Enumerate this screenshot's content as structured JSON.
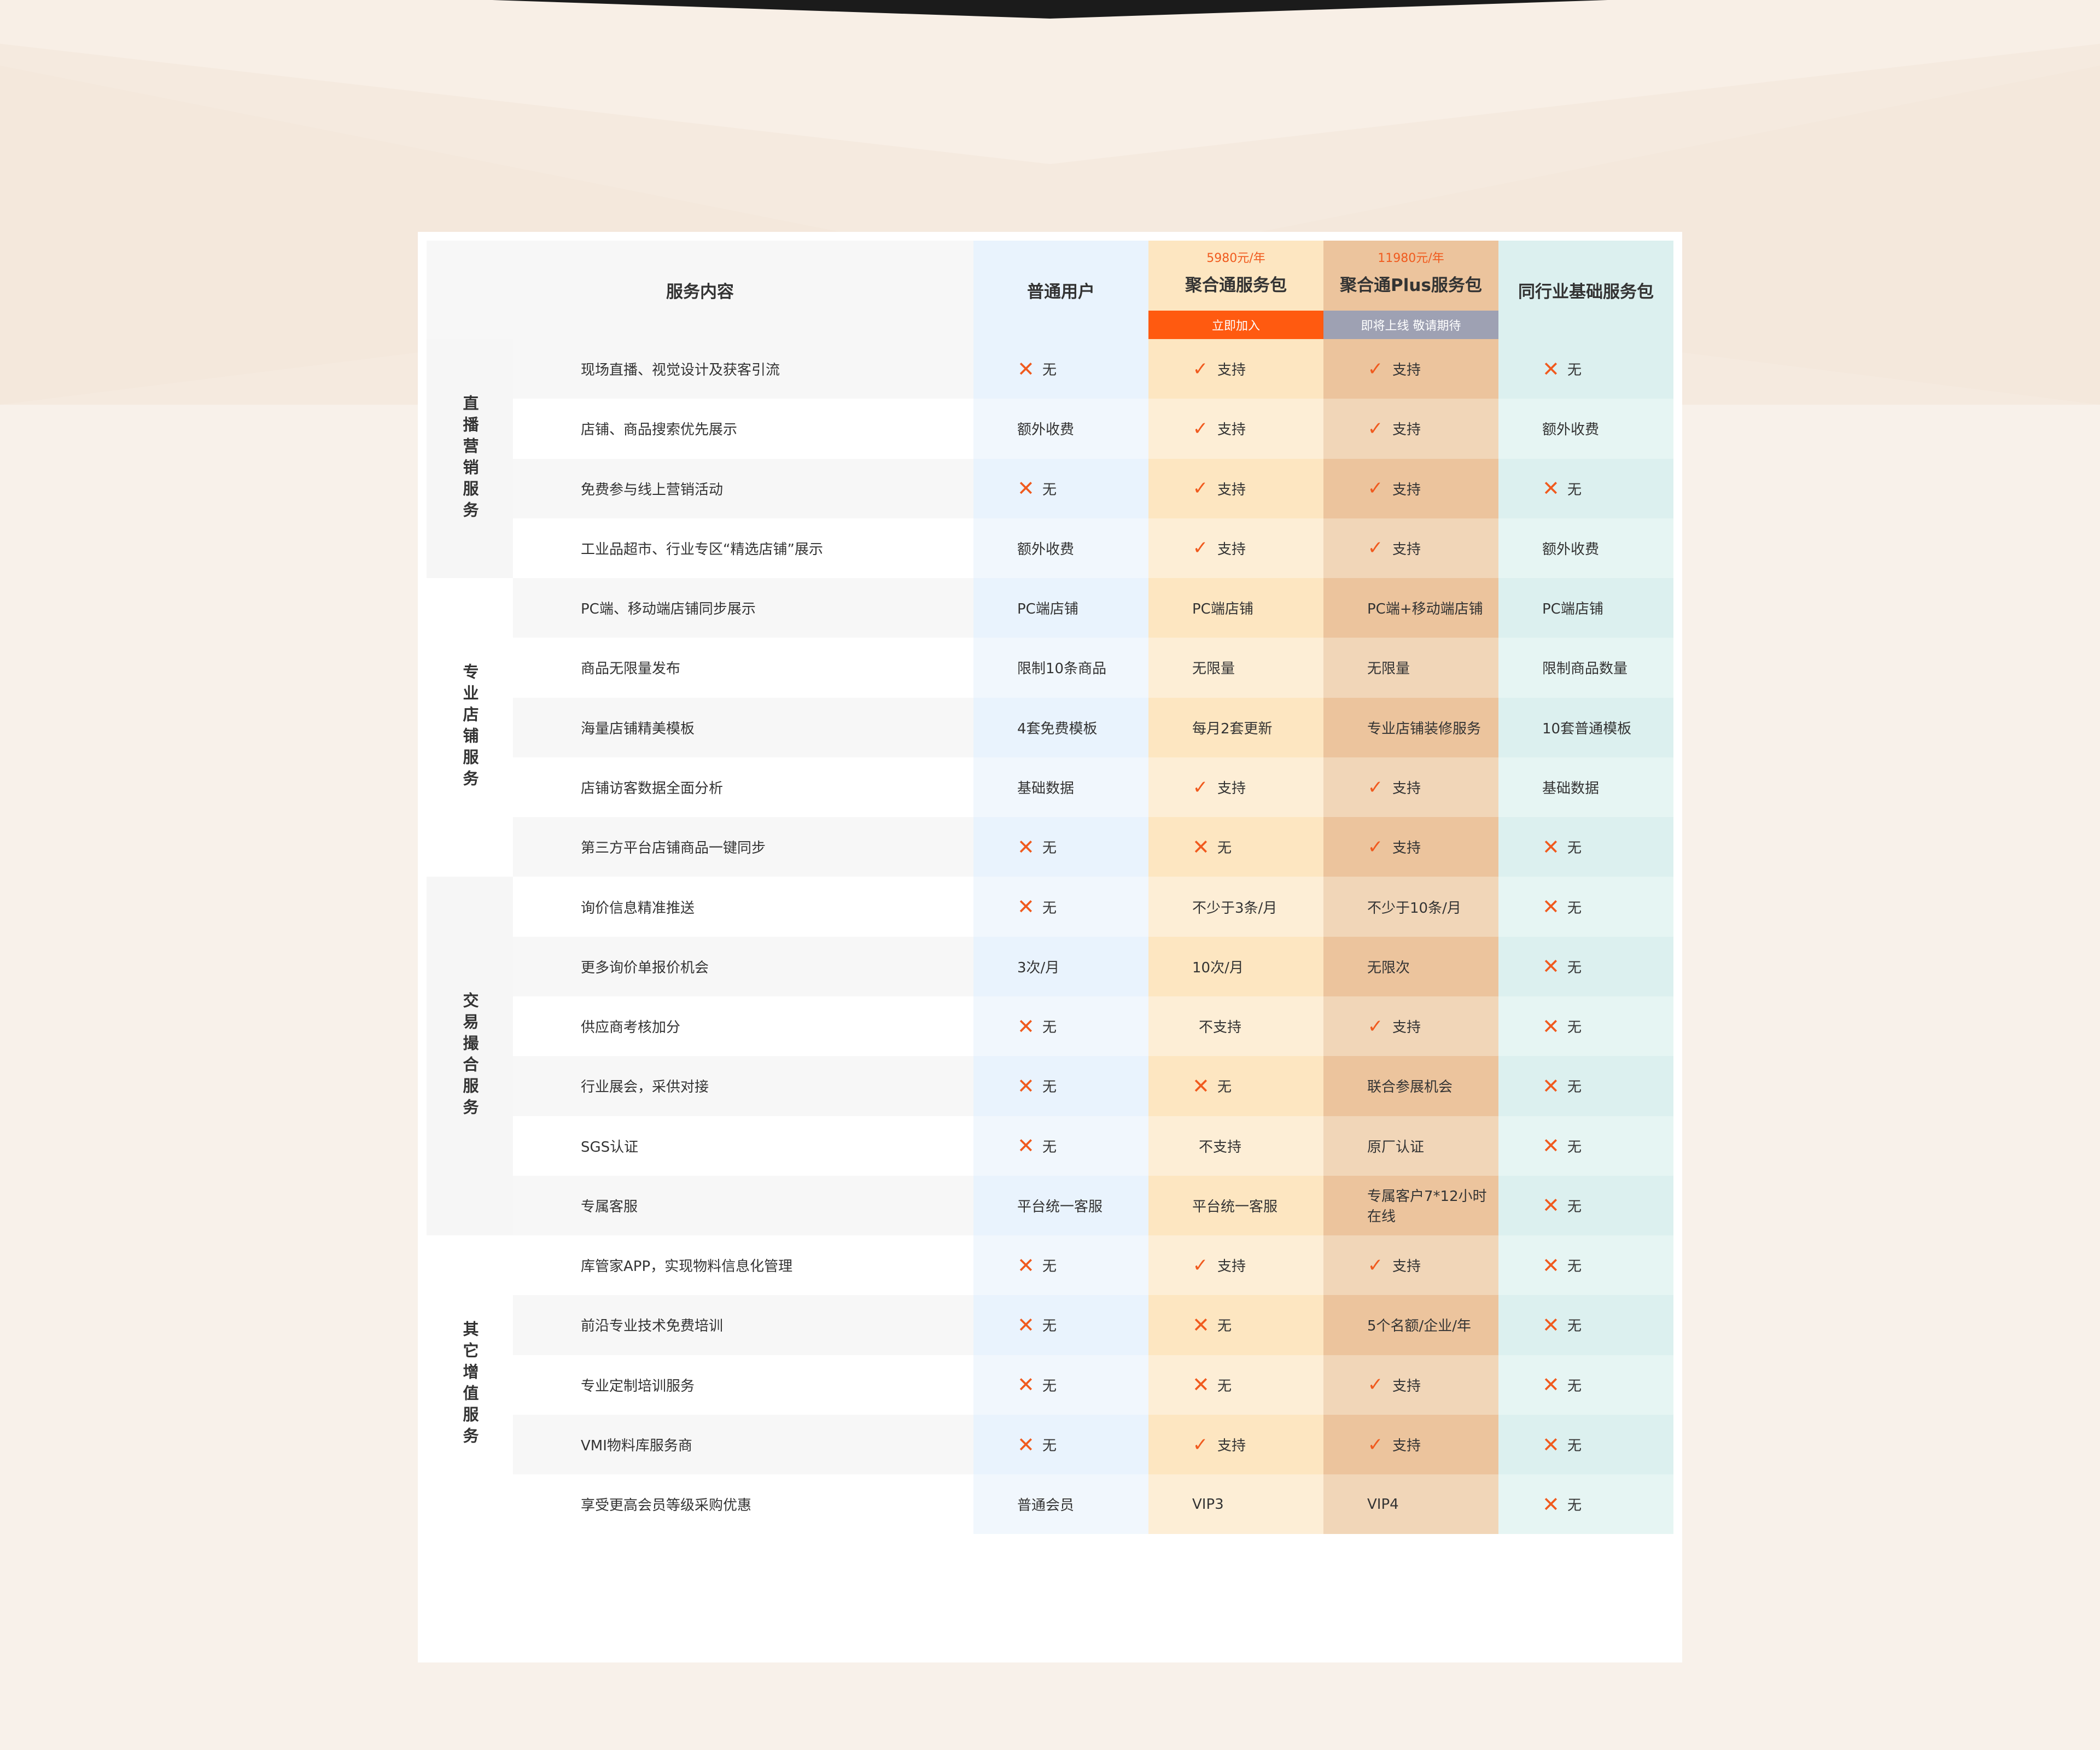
{
  "header": {
    "service_content": "服务内容",
    "columns": [
      {
        "title": "普通用户",
        "price": "",
        "bar": ""
      },
      {
        "title": "聚合通服务包",
        "price": "5980元/年",
        "bar": "立即加入"
      },
      {
        "title": "聚合通Plus服务包",
        "price": "11980元/年",
        "bar": "即将上线 敬请期待"
      },
      {
        "title": "同行业基础服务包",
        "price": "",
        "bar": ""
      }
    ]
  },
  "colors": {
    "normal": [
      "#e9f3fd",
      "#f1f7fd"
    ],
    "pkg": [
      "#fde6c1",
      "#fdeed6"
    ],
    "plus": [
      "#ecc49d",
      "#f1d6b8"
    ],
    "peer": [
      "#dcf0ef",
      "#e6f5f3"
    ],
    "feature": [
      "#f7f7f7",
      "#ffffff"
    ],
    "accent": "#f05a1e",
    "join": "#ff5a10",
    "soon": "#9ea1b3"
  },
  "icons": {
    "cross": "cross-icon",
    "check": "check-icon"
  },
  "categories": [
    {
      "name": "直播营销服务",
      "rows": [
        {
          "feature": "现场直播、视觉设计及获客引流",
          "cells": [
            {
              "m": "x",
              "t": "无"
            },
            {
              "m": "v",
              "t": "支持"
            },
            {
              "m": "v",
              "t": "支持"
            },
            {
              "m": "x",
              "t": "无"
            }
          ]
        },
        {
          "feature": "店铺、商品搜索优先展示",
          "cells": [
            {
              "t": "额外收费"
            },
            {
              "m": "v",
              "t": "支持"
            },
            {
              "m": "v",
              "t": "支持"
            },
            {
              "t": "额外收费"
            }
          ]
        },
        {
          "feature": "免费参与线上营销活动",
          "cells": [
            {
              "m": "x",
              "t": "无"
            },
            {
              "m": "v",
              "t": "支持"
            },
            {
              "m": "v",
              "t": "支持"
            },
            {
              "m": "x",
              "t": "无"
            }
          ]
        },
        {
          "feature": "工业品超市、行业专区“精选店铺”展示",
          "cells": [
            {
              "t": "额外收费"
            },
            {
              "m": "v",
              "t": "支持"
            },
            {
              "m": "v",
              "t": "支持"
            },
            {
              "t": "额外收费"
            }
          ]
        }
      ]
    },
    {
      "name": "专业店铺服务",
      "rows": [
        {
          "feature": "PC端、移动端店铺同步展示",
          "cells": [
            {
              "t": "PC端店铺"
            },
            {
              "t": "PC端店铺"
            },
            {
              "t": "PC端+移动端店铺"
            },
            {
              "t": "PC端店铺"
            }
          ]
        },
        {
          "feature": "商品无限量发布",
          "cells": [
            {
              "t": "限制10条商品"
            },
            {
              "t": "无限量"
            },
            {
              "t": "无限量"
            },
            {
              "t": "限制商品数量"
            }
          ]
        },
        {
          "feature": "海量店铺精美模板",
          "cells": [
            {
              "t": "4套免费模板"
            },
            {
              "t": "每月2套更新"
            },
            {
              "t": "专业店铺装修服务"
            },
            {
              "t": "10套普通模板"
            }
          ]
        },
        {
          "feature": "店铺访客数据全面分析",
          "cells": [
            {
              "t": "基础数据"
            },
            {
              "m": "v",
              "t": "支持"
            },
            {
              "m": "v",
              "t": "支持"
            },
            {
              "t": "基础数据"
            }
          ]
        },
        {
          "feature": "第三方平台店铺商品一键同步",
          "cells": [
            {
              "m": "x",
              "t": "无"
            },
            {
              "m": "x",
              "t": "无"
            },
            {
              "m": "v",
              "t": "支持"
            },
            {
              "m": "x",
              "t": "无"
            }
          ]
        }
      ]
    },
    {
      "name": "交易撮合服务",
      "rows": [
        {
          "feature": "询价信息精准推送",
          "cells": [
            {
              "m": "x",
              "t": "无"
            },
            {
              "t": "不少于3条/月"
            },
            {
              "t": "不少于10条/月"
            },
            {
              "m": "x",
              "t": "无"
            }
          ]
        },
        {
          "feature": "更多询价单报价机会",
          "cells": [
            {
              "t": "3次/月"
            },
            {
              "t": "10次/月"
            },
            {
              "t": "无限次"
            },
            {
              "m": "x",
              "t": "无"
            }
          ]
        },
        {
          "feature": "供应商考核加分",
          "cells": [
            {
              "m": "x",
              "t": "无"
            },
            {
              "t": "不支持",
              "c": true
            },
            {
              "m": "v",
              "t": "支持"
            },
            {
              "m": "x",
              "t": "无"
            }
          ]
        },
        {
          "feature": "行业展会，采供对接",
          "cells": [
            {
              "m": "x",
              "t": "无"
            },
            {
              "m": "x",
              "t": "无"
            },
            {
              "t": "联合参展机会"
            },
            {
              "m": "x",
              "t": "无"
            }
          ]
        },
        {
          "feature": "SGS认证",
          "cells": [
            {
              "m": "x",
              "t": "无"
            },
            {
              "t": "不支持",
              "c": true
            },
            {
              "t": "原厂认证"
            },
            {
              "m": "x",
              "t": "无"
            }
          ]
        },
        {
          "feature": "专属客服",
          "cells": [
            {
              "t": "平台统一客服"
            },
            {
              "t": "平台统一客服"
            },
            {
              "t": "专属客户7*12小时在线"
            },
            {
              "m": "x",
              "t": "无"
            }
          ]
        }
      ]
    },
    {
      "name": "其它增值服务",
      "rows": [
        {
          "feature": "库管家APP，实现物料信息化管理",
          "cells": [
            {
              "m": "x",
              "t": "无"
            },
            {
              "m": "v",
              "t": "支持"
            },
            {
              "m": "v",
              "t": "支持"
            },
            {
              "m": "x",
              "t": "无"
            }
          ]
        },
        {
          "feature": "前沿专业技术免费培训",
          "cells": [
            {
              "m": "x",
              "t": "无"
            },
            {
              "m": "x",
              "t": "无"
            },
            {
              "t": "5个名额/企业/年"
            },
            {
              "m": "x",
              "t": "无"
            }
          ]
        },
        {
          "feature": "专业定制培训服务",
          "cells": [
            {
              "m": "x",
              "t": "无"
            },
            {
              "m": "x",
              "t": "无"
            },
            {
              "m": "v",
              "t": "支持"
            },
            {
              "m": "x",
              "t": "无"
            }
          ]
        },
        {
          "feature": "VMI物料库服务商",
          "cells": [
            {
              "m": "x",
              "t": "无"
            },
            {
              "m": "v",
              "t": "支持"
            },
            {
              "m": "v",
              "t": "支持"
            },
            {
              "m": "x",
              "t": "无"
            }
          ]
        },
        {
          "feature": "享受更高会员等级采购优惠",
          "cells": [
            {
              "t": "普通会员"
            },
            {
              "t": "VIP3"
            },
            {
              "t": "VIP4"
            },
            {
              "m": "x",
              "t": "无"
            }
          ]
        }
      ]
    }
  ]
}
